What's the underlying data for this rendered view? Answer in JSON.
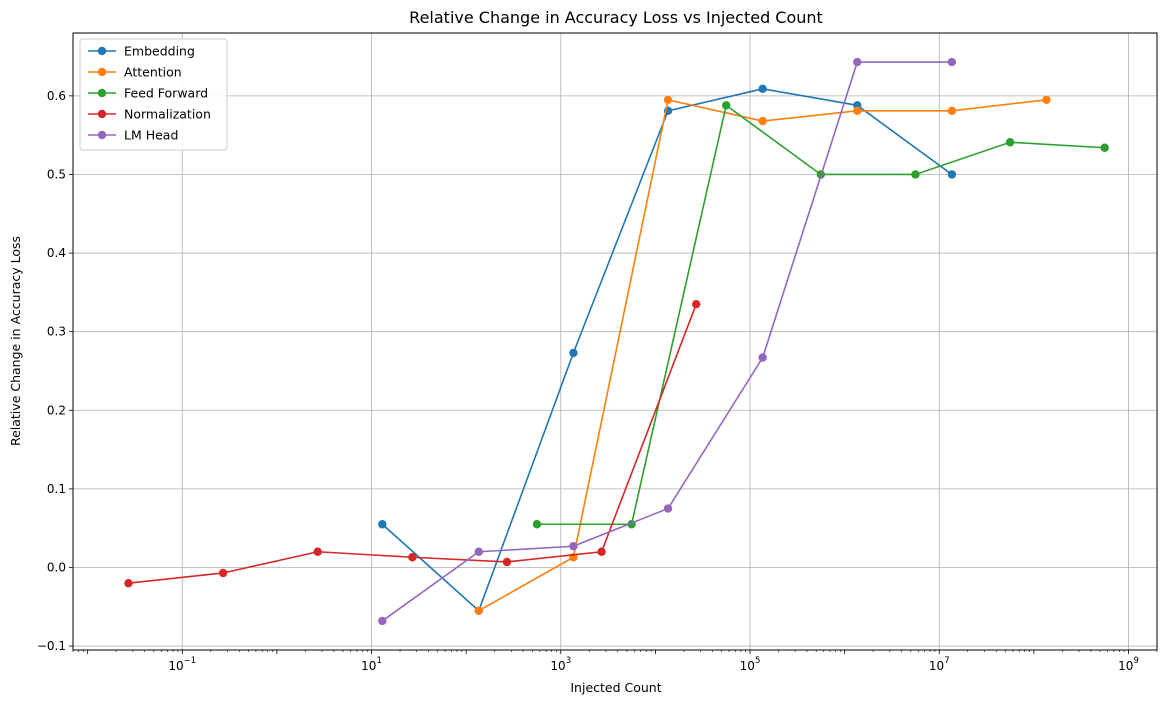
{
  "chart_data": {
    "type": "line",
    "title": "Relative Change in Accuracy Loss vs Injected Count",
    "xlabel": "Injected Count",
    "ylabel": "Relative Change in Accuracy Loss",
    "x_scale": "log",
    "xlim": [
      0.007,
      2000000000
    ],
    "ylim": [
      -0.105,
      0.68
    ],
    "x_ticks": [
      {
        "value": 0.1,
        "base": "10",
        "exp": "−1"
      },
      {
        "value": 10,
        "base": "10",
        "exp": "1"
      },
      {
        "value": 1000,
        "base": "10",
        "exp": "3"
      },
      {
        "value": 100000,
        "base": "10",
        "exp": "5"
      },
      {
        "value": 10000000,
        "base": "10",
        "exp": "7"
      },
      {
        "value": 1000000000,
        "base": "10",
        "exp": "9"
      }
    ],
    "y_ticks": [
      {
        "value": -0.1,
        "label": "−0.1"
      },
      {
        "value": 0.0,
        "label": "0.0"
      },
      {
        "value": 0.1,
        "label": "0.1"
      },
      {
        "value": 0.2,
        "label": "0.2"
      },
      {
        "value": 0.3,
        "label": "0.3"
      },
      {
        "value": 0.4,
        "label": "0.4"
      },
      {
        "value": 0.5,
        "label": "0.5"
      },
      {
        "value": 0.6,
        "label": "0.6"
      }
    ],
    "grid": true,
    "legend_position": "top-left",
    "series": [
      {
        "name": "Embedding",
        "color": "#1f77b4",
        "points": [
          [
            13,
            0.055
          ],
          [
            136,
            -0.055
          ],
          [
            1360,
            0.273
          ],
          [
            13600,
            0.581
          ],
          [
            136000,
            0.609
          ],
          [
            1360000,
            0.588
          ],
          [
            13600000,
            0.5
          ]
        ]
      },
      {
        "name": "Attention",
        "color": "#ff7f0e",
        "points": [
          [
            136,
            -0.055
          ],
          [
            1360,
            0.013
          ],
          [
            13600,
            0.595
          ],
          [
            136000,
            0.568
          ],
          [
            1360000,
            0.581
          ],
          [
            13600000,
            0.581
          ],
          [
            136000000,
            0.595
          ]
        ]
      },
      {
        "name": "Feed Forward",
        "color": "#2ca02c",
        "points": [
          [
            560,
            0.055
          ],
          [
            5600,
            0.055
          ],
          [
            56000,
            0.588
          ],
          [
            560000,
            0.5
          ],
          [
            5600000,
            0.5
          ],
          [
            56000000,
            0.541
          ],
          [
            560000000,
            0.534
          ]
        ]
      },
      {
        "name": "Normalization",
        "color": "#d62728",
        "points": [
          [
            0.027,
            -0.02
          ],
          [
            0.27,
            -0.007
          ],
          [
            2.7,
            0.02
          ],
          [
            27,
            0.013
          ],
          [
            270,
            0.007
          ],
          [
            2700,
            0.02
          ],
          [
            27000,
            0.335
          ]
        ]
      },
      {
        "name": "LM Head",
        "color": "#9467bd",
        "points": [
          [
            13,
            -0.068
          ],
          [
            136,
            0.02
          ],
          [
            1360,
            0.027
          ],
          [
            13600,
            0.075
          ],
          [
            136000,
            0.267
          ],
          [
            1360000,
            0.643
          ],
          [
            13600000,
            0.643
          ]
        ]
      }
    ]
  }
}
